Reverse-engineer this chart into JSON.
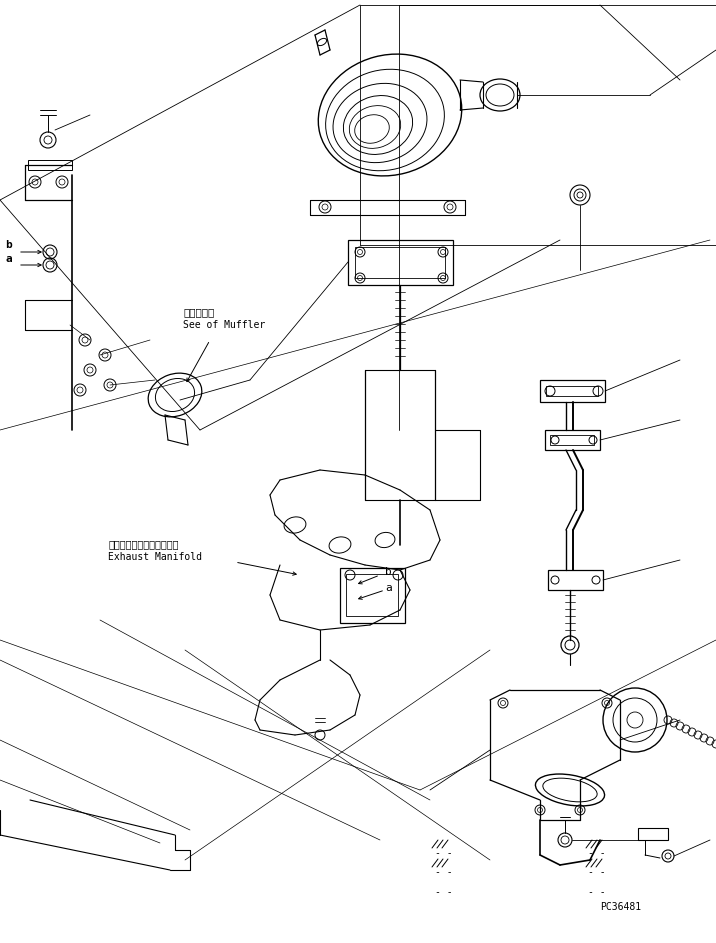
{
  "bg_color": "#ffffff",
  "line_color": "#000000",
  "fig_width": 7.16,
  "fig_height": 9.43,
  "dpi": 100,
  "part_code": "PC36481",
  "annotation_muffler_jp": "マフラ参照",
  "annotation_muffler_en": "See of Muffler",
  "annotation_exhaust_jp": "エキゾーストマニホールド",
  "annotation_exhaust_en": "Exhaust Manifold",
  "label_b1": "b",
  "label_a1": "a",
  "label_b2": "b",
  "label_a2": "a",
  "dashes1": "- -",
  "dashes2": "- -",
  "dashes3": "- -",
  "dashes4": "- -"
}
